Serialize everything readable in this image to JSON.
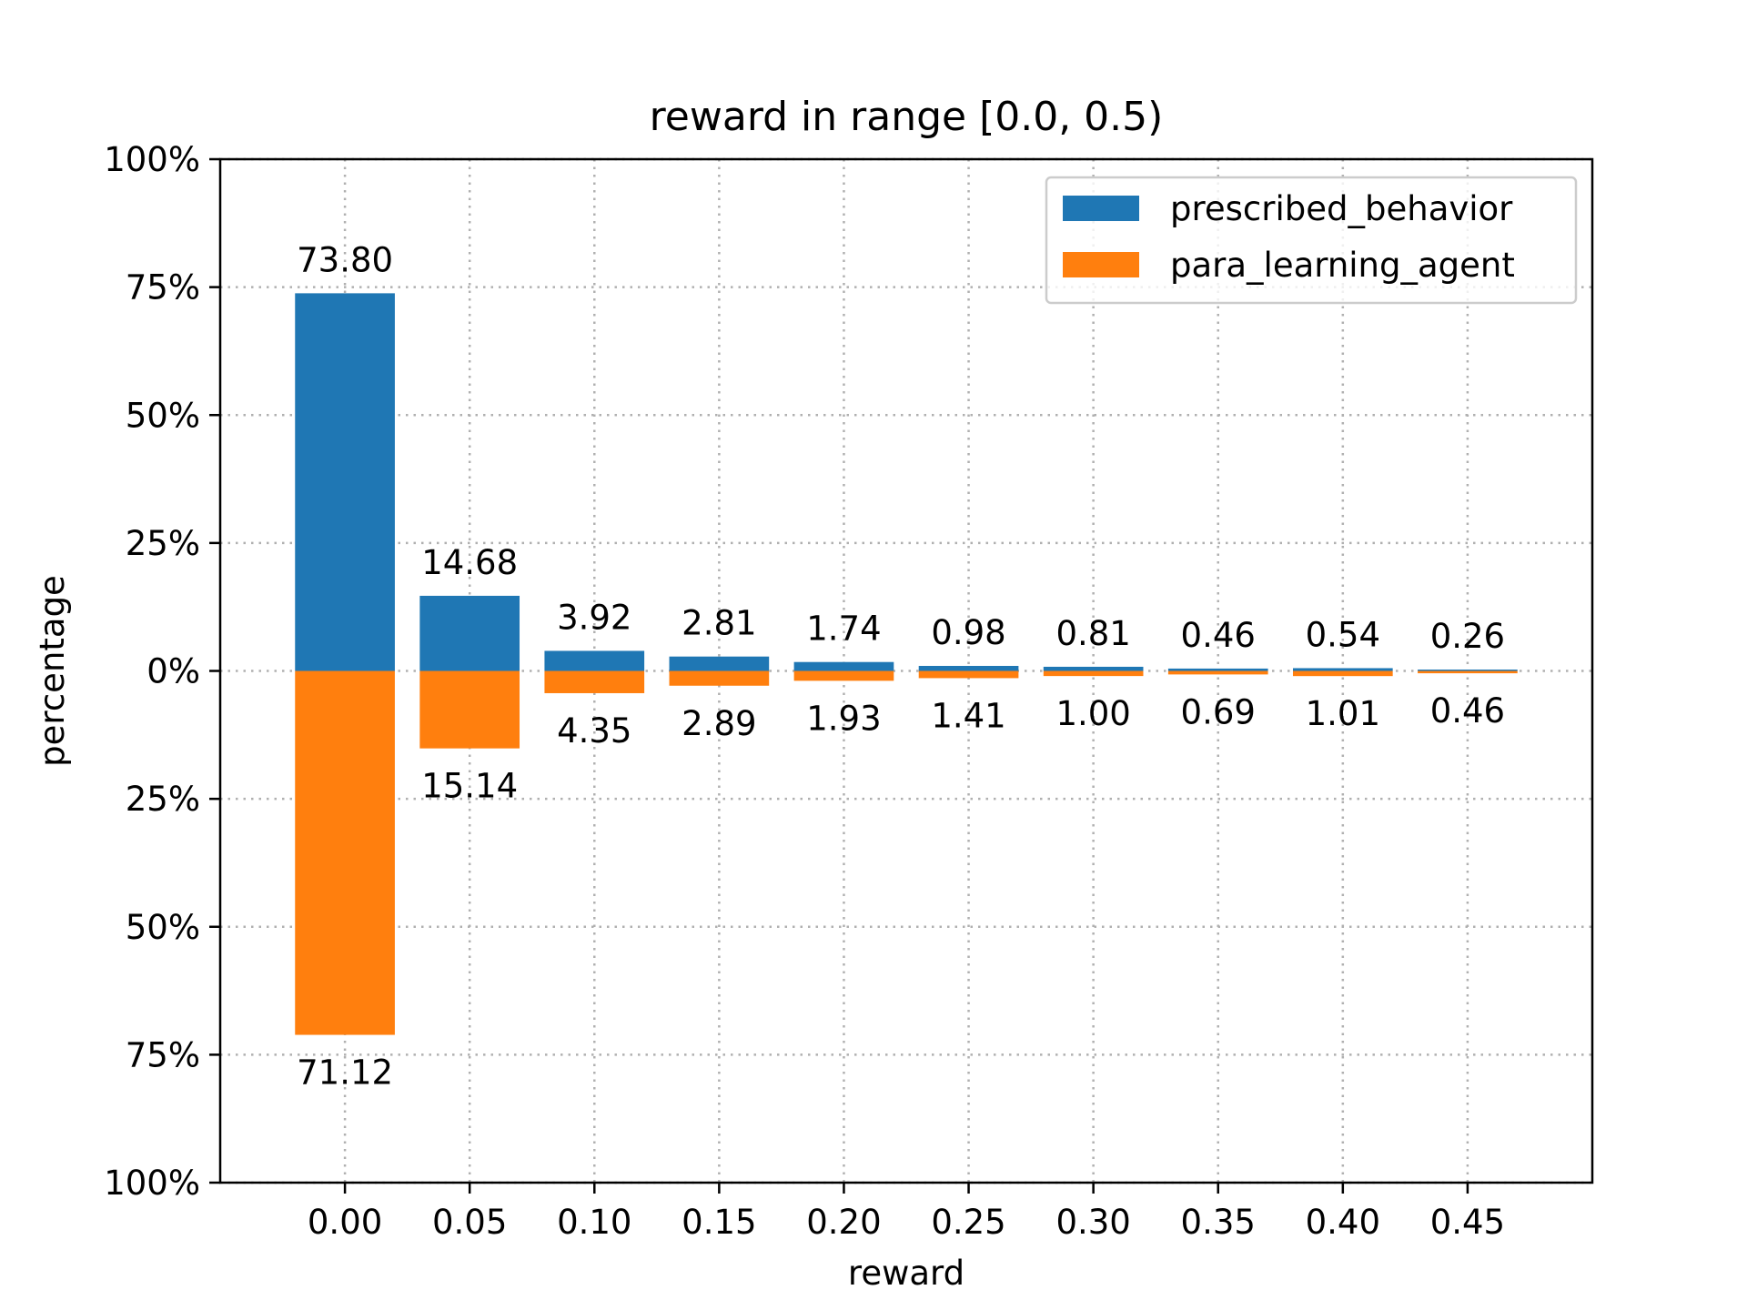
{
  "chart_data": {
    "type": "bar",
    "title": "reward in range [0.0, 0.5)",
    "xlabel": "reward",
    "ylabel": "percentage",
    "categories": [
      "0.00",
      "0.05",
      "0.10",
      "0.15",
      "0.20",
      "0.25",
      "0.30",
      "0.35",
      "0.40",
      "0.45"
    ],
    "x": [
      0.0,
      0.05,
      0.1,
      0.15,
      0.2,
      0.25,
      0.3,
      0.35,
      0.4,
      0.45
    ],
    "xlim": [
      -0.05,
      0.5
    ],
    "ylim": [
      -100,
      100
    ],
    "yticks": [
      -100,
      -75,
      -50,
      -25,
      0,
      25,
      50,
      75,
      100
    ],
    "ytick_labels": [
      "100%",
      "75%",
      "50%",
      "25%",
      "0%",
      "25%",
      "50%",
      "75%",
      "100%"
    ],
    "series": [
      {
        "name": "prescribed_behavior",
        "color": "#1f77b4",
        "direction": "up",
        "values": [
          73.8,
          14.68,
          3.92,
          2.81,
          1.74,
          0.98,
          0.81,
          0.46,
          0.54,
          0.26
        ],
        "labels": [
          "73.80",
          "14.68",
          "3.92",
          "2.81",
          "1.74",
          "0.98",
          "0.81",
          "0.46",
          "0.54",
          "0.26"
        ]
      },
      {
        "name": "para_learning_agent",
        "color": "#ff7f0e",
        "direction": "down",
        "values": [
          71.12,
          15.14,
          4.35,
          2.89,
          1.93,
          1.41,
          1.0,
          0.69,
          1.01,
          0.46
        ],
        "labels": [
          "71.12",
          "15.14",
          "4.35",
          "2.89",
          "1.93",
          "1.41",
          "1.00",
          "0.69",
          "1.01",
          "0.46"
        ]
      }
    ],
    "grid": true,
    "legend": "upper right"
  }
}
